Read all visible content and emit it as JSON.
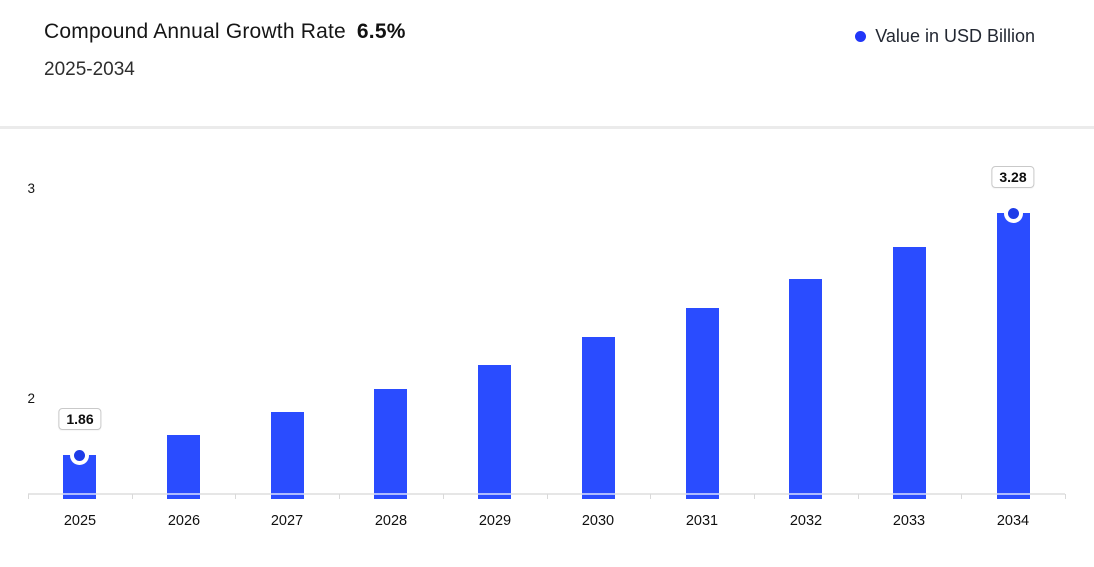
{
  "header": {
    "title": "Compound Annual Growth Rate",
    "cagr": "6.5%",
    "subtitle": "2025-2034"
  },
  "legend": {
    "label": "Value in USD Billion",
    "dot_color": "#2136f8"
  },
  "chart_data": {
    "type": "bar",
    "title": "Compound Annual Growth Rate 6.5% 2025-2034",
    "series_name": "Value in USD Billion",
    "categories": [
      "2025",
      "2026",
      "2027",
      "2028",
      "2029",
      "2030",
      "2031",
      "2032",
      "2033",
      "2034"
    ],
    "values": [
      1.86,
      1.98,
      2.11,
      2.25,
      2.39,
      2.55,
      2.72,
      2.89,
      3.08,
      3.28
    ],
    "annotated_points": [
      {
        "index": 0,
        "label": "1.86"
      },
      {
        "index": 9,
        "label": "3.28"
      }
    ],
    "y_ticks": [
      "2",
      "3"
    ],
    "xlabel": "",
    "ylabel": "",
    "ylim_visible": [
      1.64,
      3.5
    ],
    "grid": false,
    "legend_position": "top-right",
    "bar_color": "#2a4cff",
    "marker_color": "#1e3ce8",
    "axis_color": "#e6e6e6"
  }
}
